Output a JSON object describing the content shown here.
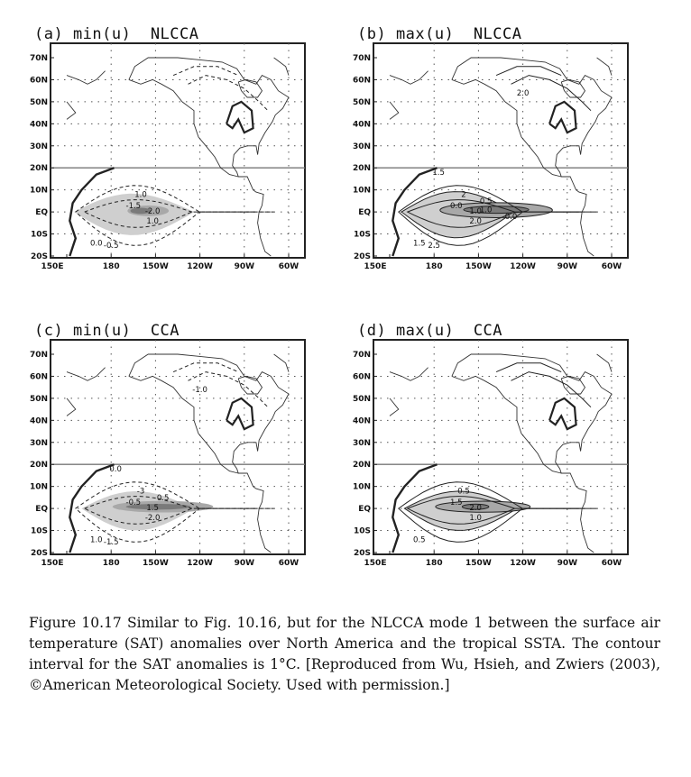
{
  "figure": {
    "panels": [
      {
        "id": "a",
        "title": "(a) min(u)  NLCCA",
        "style": "min-nl",
        "labels": [
          "1.0",
          "-1.5",
          "-2.0",
          "1.0",
          "0.0",
          "-0.5"
        ]
      },
      {
        "id": "b",
        "title": "(b) max(u)  NLCCA",
        "style": "max-nl",
        "labels": [
          "2",
          "0.0",
          "1.0",
          "2.0",
          "1.5",
          "2.5",
          "2.0",
          "1.5",
          "0.5",
          "1.0",
          "0.0"
        ]
      },
      {
        "id": "c",
        "title": "(c) min(u)  CCA",
        "style": "min-cca",
        "labels": [
          "-3",
          "-0.5",
          "1.5",
          "-2.0",
          "1.0",
          "-1.5",
          "-1.0",
          "0.0",
          "0.5"
        ]
      },
      {
        "id": "d",
        "title": "(d) max(u)  CCA",
        "style": "max-cca",
        "labels": [
          "0.5",
          "1.5",
          "2.0",
          "1.0",
          "0.5"
        ]
      }
    ],
    "lat_labels": [
      "70N",
      "60N",
      "50N",
      "40N",
      "30N",
      "20N",
      "10N",
      "EQ",
      "10S",
      "20S"
    ],
    "lon_labels": [
      "150E",
      "180",
      "150W",
      "120W",
      "90W",
      "60W"
    ]
  },
  "caption": "Figure 10.17 Similar to Fig. 10.16, but for the NLCCA mode 1 between the surface air temperature (SAT) anomalies over North America and the tropical SSTA. The contour interval for the SAT anomalies is 1°C. [Reproduced from Wu, Hsieh, and Zwiers (2003), ©American Meteorological Society. Used with permission.]",
  "colors": {
    "shade_light": "#cfcfcf",
    "shade_mid": "#a8a8a8",
    "shade_dark": "#7a7a7a",
    "line": "#222222"
  }
}
